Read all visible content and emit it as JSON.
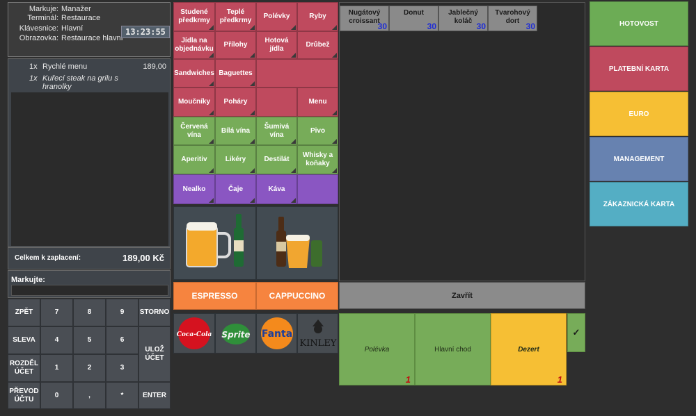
{
  "info": {
    "rows": [
      {
        "label": "Markuje:",
        "value": "Manažer"
      },
      {
        "label": "Terminál:",
        "value": "Restaurace"
      },
      {
        "label": "Klávesnice:",
        "value": "Hlavní"
      },
      {
        "label": "Obrazovka:",
        "value": "Restaurace hlavní"
      }
    ],
    "clock": "13:23:55"
  },
  "order": {
    "items": [
      {
        "qty": "1x",
        "name": "Rychlé menu",
        "price": "189,00"
      },
      {
        "qty": "1x",
        "name": "Kuřecí steak na grilu s hranolky",
        "price": ""
      }
    ]
  },
  "total": {
    "label": "Celkem k zaplacení:",
    "value": "189,00 Kč"
  },
  "markujte": {
    "label": "Markujte:",
    "value": ""
  },
  "keypad": [
    "ZPĚT",
    "7",
    "8",
    "9",
    "STORNO",
    "SLEVA",
    "4",
    "5",
    "6",
    "ULOŽ ÚČET",
    "ROZDĚL ÚČET",
    "1",
    "2",
    "3",
    "PŘEVOD ÚČTU",
    "0",
    ",",
    "*",
    "ENTER"
  ],
  "categories": [
    [
      "Studené předkrmy",
      "Teplé předkrmy",
      "Polévky",
      "Ryby"
    ],
    [
      "Jídla na objednávku",
      "Přílohy",
      "Hotová jídla",
      "Drůbež"
    ],
    [
      "Sandwiches",
      "Baguettes",
      "",
      ""
    ],
    [
      "Moučníky",
      "Poháry",
      "",
      "Menu"
    ],
    [
      "Červená vína",
      "Bílá vína",
      "Šumivá vína",
      "Pivo"
    ],
    [
      "Aperitiv",
      "Likéry",
      "Destilát",
      "Whisky a koňaky"
    ],
    [
      "Nealko",
      "Čaje",
      "Káva",
      ""
    ]
  ],
  "quick": {
    "espresso": "ESPRESSO",
    "cappuccino": "CAPPUCCINO"
  },
  "brand_logos": {
    "cola": "Coca-Cola",
    "sprite": "Sprite",
    "fanta": "Fanta",
    "kinley": "KINLEY"
  },
  "products": [
    {
      "name": "Nugátový croissant",
      "count": "30"
    },
    {
      "name": "Donut",
      "count": "30"
    },
    {
      "name": "Jablečný koláč",
      "count": "30"
    },
    {
      "name": "Tvarohový dort",
      "count": "30"
    }
  ],
  "close_label": "Zavřít",
  "courses": [
    {
      "name": "Polévka",
      "count": "1"
    },
    {
      "name": "Hlavní chod",
      "count": ""
    },
    {
      "name": "Dezert",
      "count": "1"
    }
  ],
  "check_mark": "✓",
  "payments": [
    {
      "label": "HOTOVOST",
      "color": "#6cac55"
    },
    {
      "label": "PLATEBNÍ KARTA",
      "color": "#bf4a5e"
    },
    {
      "label": "EURO",
      "color": "#f6bf34"
    },
    {
      "label": "MANAGEMENT",
      "color": "#6782b0"
    },
    {
      "label": "ZÁKAZNICKÁ KARTA",
      "color": "#54aec4"
    }
  ],
  "colors": {
    "red": "#bf4a5e",
    "green": "#77ac59",
    "purple": "#8a56c2",
    "orange": "#f6843f",
    "gold": "#f6bf34",
    "blue_count": "#1e2cd6",
    "red_count": "#c01010"
  }
}
